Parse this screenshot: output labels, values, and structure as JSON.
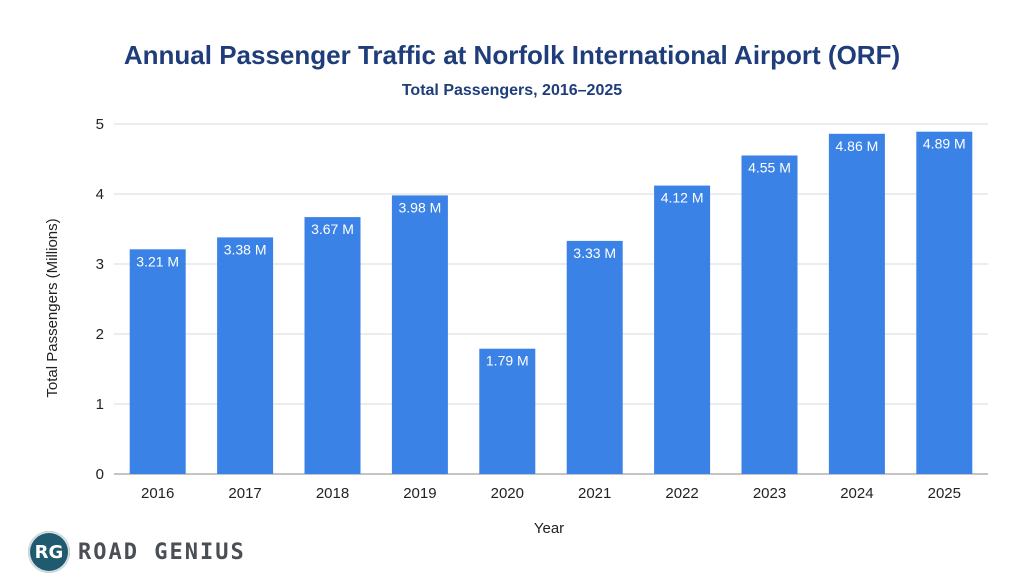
{
  "chart_data": {
    "type": "bar",
    "title": "Annual Passenger Traffic at Norfolk International Airport (ORF)",
    "subtitle": "Total Passengers, 2016–2025",
    "xlabel": "Year",
    "ylabel": "Total Passengers (Millions)",
    "categories": [
      "2016",
      "2017",
      "2018",
      "2019",
      "2020",
      "2021",
      "2022",
      "2023",
      "2024",
      "2025"
    ],
    "values": [
      3.21,
      3.38,
      3.67,
      3.98,
      1.79,
      3.33,
      4.12,
      4.55,
      4.86,
      4.89
    ],
    "data_labels": [
      "3.21 M",
      "3.38 M",
      "3.67 M",
      "3.98 M",
      "1.79 M",
      "3.33 M",
      "4.12 M",
      "4.55 M",
      "4.86 M",
      "4.89 M"
    ],
    "ylim": [
      0,
      5
    ],
    "yticks": [
      "0",
      "1",
      "2",
      "3",
      "4",
      "5"
    ],
    "grid": true,
    "legend": "none",
    "bar_color": "#3b82e6"
  },
  "brand": {
    "badge": "RG",
    "name": "ROAD GENIUS"
  }
}
